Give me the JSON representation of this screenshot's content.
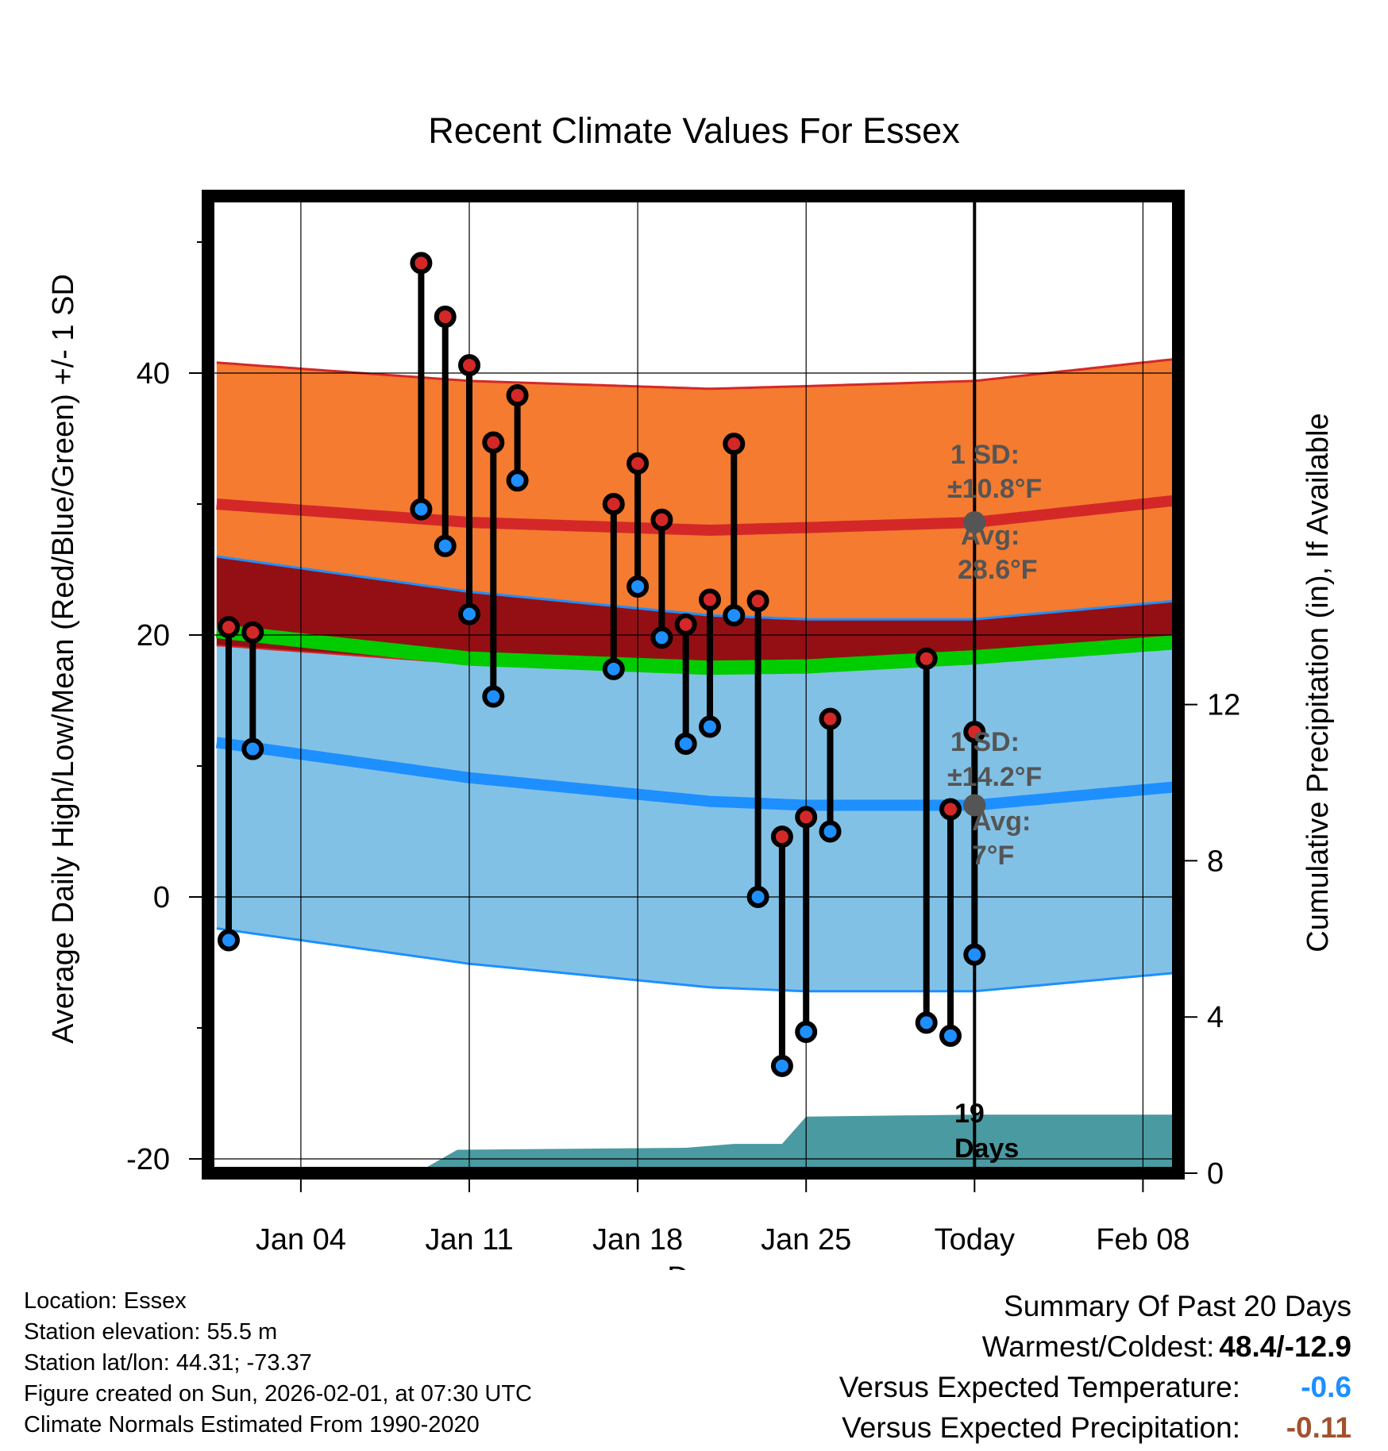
{
  "chart_data": {
    "type": "range-dot",
    "title": "Recent Climate Values For Essex",
    "xlabel": "Day",
    "ylabel": "Average Daily High/Low/Mean (Red/Blue/Green) +/- 1 SD",
    "y2label": "Cumulative Precipitation (in), If Available",
    "ylim": [
      -21,
      54
    ],
    "y2lim": [
      0,
      24.5
    ],
    "xlim": [
      0.5,
      41.5
    ],
    "x_ticks": [
      {
        "day": 4,
        "label": "Jan 04"
      },
      {
        "day": 11,
        "label": "Jan 11"
      },
      {
        "day": 18,
        "label": "Jan 18"
      },
      {
        "day": 25,
        "label": "Jan 25"
      },
      {
        "day": 32,
        "label": "Today"
      },
      {
        "day": 39,
        "label": "Feb 08"
      }
    ],
    "y_ticks": [
      -20,
      0,
      20,
      40
    ],
    "y_ticks_labels": [
      "-20",
      "0",
      "20",
      "40"
    ],
    "y_minor_ticks": [
      -10,
      10,
      30,
      50
    ],
    "y2_ticks": [
      0,
      4,
      8,
      12
    ],
    "y2_ticks_labels": [
      "0",
      "4",
      "8",
      "12"
    ],
    "today_day": 32,
    "observations": [
      {
        "day": 1,
        "high": 20.6,
        "low": -3.3
      },
      {
        "day": 2,
        "high": 20.2,
        "low": 11.3
      },
      {
        "day": 9,
        "high": 48.4,
        "low": 29.6
      },
      {
        "day": 10,
        "high": 44.3,
        "low": 26.8
      },
      {
        "day": 11,
        "high": 40.6,
        "low": 21.6
      },
      {
        "day": 12,
        "high": 34.7,
        "low": 15.3
      },
      {
        "day": 13,
        "high": 38.3,
        "low": 31.8
      },
      {
        "day": 17,
        "high": 30.0,
        "low": 17.4
      },
      {
        "day": 18,
        "high": 33.1,
        "low": 23.7
      },
      {
        "day": 19,
        "high": 28.8,
        "low": 19.8
      },
      {
        "day": 20,
        "high": 20.8,
        "low": 11.7
      },
      {
        "day": 21,
        "high": 22.7,
        "low": 13.0
      },
      {
        "day": 22,
        "high": 34.6,
        "low": 21.5
      },
      {
        "day": 23,
        "high": 22.6,
        "low": 0.0
      },
      {
        "day": 24,
        "high": 4.6,
        "low": -12.9
      },
      {
        "day": 25,
        "high": 6.1,
        "low": -10.3
      },
      {
        "day": 26,
        "high": 13.6,
        "low": 5.0
      },
      {
        "day": 30,
        "high": 18.2,
        "low": -9.6
      },
      {
        "day": 31,
        "high": 6.7,
        "low": -10.6
      },
      {
        "day": 32,
        "high": 12.6,
        "low": -4.4
      }
    ],
    "normals": {
      "days": [
        0.5,
        11,
        21,
        25,
        32,
        41.5
      ],
      "high_mean": [
        30.0,
        28.6,
        28.0,
        28.2,
        28.6,
        30.5
      ],
      "low_mean": [
        11.8,
        9.1,
        7.3,
        7.0,
        7.0,
        8.6
      ],
      "mean": [
        20.3,
        18.2,
        17.5,
        17.6,
        18.3,
        19.6
      ],
      "high_sd": 10.8,
      "low_sd": 14.2
    },
    "precipitation": {
      "days": [
        0.5,
        8.8,
        10.5,
        20,
        22,
        24,
        25,
        32,
        41.5
      ],
      "values": [
        0,
        0,
        0.6,
        0.65,
        0.75,
        0.75,
        1.45,
        1.5,
        1.5
      ]
    },
    "annotations": {
      "high_sd": "1 SD:",
      "high_sd_value": "±10.8°F",
      "high_avg": "Avg:",
      "high_avg_value": "28.6°F",
      "low_sd": "1 SD:",
      "low_sd_value": "±14.2°F",
      "low_avg": "Avg:",
      "low_avg_value": "7°F",
      "days_count": "19",
      "days_word": "Days"
    },
    "colors": {
      "high_band": "#f47b30",
      "high_line": "#d42828",
      "low_band": "#82c1e6",
      "low_line": "#1e8fff",
      "overlap_band": "#940f14",
      "mean_line": "#00cc00",
      "precip_fill": "#4a9aa2",
      "high_dot": "#d42828",
      "low_dot": "#1e8fff",
      "annotation_text": "#555555",
      "avg_marker": "#555555"
    }
  },
  "footer": {
    "location": "Location: Essex",
    "elevation": "Station elevation: 55.5 m",
    "latlon": "Station lat/lon: 44.31; -73.37",
    "created": "Figure created on Sun, 2026-02-01, at 07:30 UTC",
    "normals": "Climate Normals Estimated From 1990-2020"
  },
  "summary": {
    "title": "Summary Of Past 20 Days",
    "warm_cold_label": "Warmest/Coldest:",
    "warm_cold_value": "48.4/-12.9",
    "temp_label": "Versus Expected Temperature:",
    "temp_value": "-0.6",
    "temp_color": "#1e8fff",
    "precip_label": "Versus Expected Precipitation:",
    "precip_value": "-0.11",
    "precip_color": "#a0522d"
  }
}
